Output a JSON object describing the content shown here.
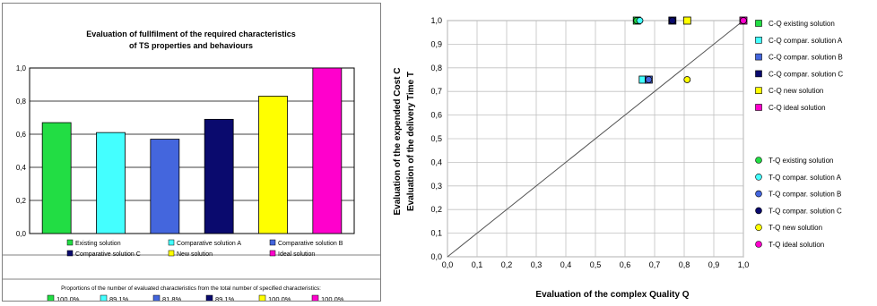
{
  "charts": {
    "left": {
      "title_line1": "Evaluation of fullfilment of the required characteristics",
      "title_line2": "of TS properties and behaviours",
      "legend": [
        {
          "label": "Existing solution",
          "color": "#22dd44"
        },
        {
          "label": "Comparative solution A",
          "color": "#44ffff"
        },
        {
          "label": "Comparative solution B",
          "color": "#4466dd"
        },
        {
          "label": "Comparative solution C",
          "color": "#0a0a6e"
        },
        {
          "label": "New solution",
          "color": "#ffff00"
        },
        {
          "label": "Ideal solution",
          "color": "#ff00cc"
        }
      ],
      "proportions_title": "Proportions of the number of evaluated characteristics from the total number of specified characteristics:",
      "proportions": [
        {
          "label": "100,0%",
          "color": "#22dd44"
        },
        {
          "label": "89,1%",
          "color": "#44ffff"
        },
        {
          "label": "81,8%",
          "color": "#4466dd"
        },
        {
          "label": "89,1%",
          "color": "#0a0a6e"
        },
        {
          "label": "100,0%",
          "color": "#ffff00"
        },
        {
          "label": "100,0%",
          "color": "#ff00cc"
        }
      ]
    },
    "right": {
      "xlabel": "Evaluation of the complex Quality Q",
      "ylabel_line1": "Evaluation of the expended Cost  C",
      "ylabel_line2": "Evaluation of the delivery Time  T",
      "legend": [
        {
          "label": "C-Q existing solution",
          "color": "#22dd44",
          "marker": "square"
        },
        {
          "label": "C-Q compar. solution A",
          "color": "#44ffff",
          "marker": "square"
        },
        {
          "label": "C-Q compar. solution B",
          "color": "#4466dd",
          "marker": "square"
        },
        {
          "label": "C-Q compar. solution C",
          "color": "#0a0a6e",
          "marker": "square"
        },
        {
          "label": "C-Q new solution",
          "color": "#ffff00",
          "marker": "square"
        },
        {
          "label": "C-Q ideal solution",
          "color": "#ff00cc",
          "marker": "square"
        },
        {
          "label": "T-Q existing solution",
          "color": "#22dd44",
          "marker": "circle"
        },
        {
          "label": "T-Q compar. solution A",
          "color": "#44ffff",
          "marker": "circle"
        },
        {
          "label": "T-Q compar. solution B",
          "color": "#4466dd",
          "marker": "circle"
        },
        {
          "label": "T-Q compar. solution C",
          "color": "#0a0a6e",
          "marker": "circle"
        },
        {
          "label": "T-Q new solution",
          "color": "#ffff00",
          "marker": "circle"
        },
        {
          "label": "T-Q ideal solution",
          "color": "#ff00cc",
          "marker": "circle"
        }
      ]
    }
  },
  "chart_data": [
    {
      "type": "bar",
      "title": "Evaluation of fullfilment of the required characteristics of TS properties and behaviours",
      "categories": [
        "Existing solution",
        "Comparative solution A",
        "Comparative solution B",
        "Comparative solution C",
        "New solution",
        "Ideal solution"
      ],
      "values": [
        0.67,
        0.61,
        0.57,
        0.69,
        0.83,
        1.0
      ],
      "colors": [
        "#22dd44",
        "#44ffff",
        "#4466dd",
        "#0a0a6e",
        "#ffff00",
        "#ff00cc"
      ],
      "ylim": [
        0,
        1.0
      ],
      "yticks": [
        "0,0",
        "0,2",
        "0,4",
        "0,6",
        "0,8",
        "1,0"
      ],
      "grid": true,
      "legend": "bottom"
    },
    {
      "type": "scatter",
      "xlabel": "Evaluation of the complex Quality Q",
      "ylabel": "Evaluation of the expended Cost C / Evaluation of the delivery Time T",
      "xlim": [
        0,
        1.0
      ],
      "ylim": [
        0,
        1.0
      ],
      "xticks": [
        "0,0",
        "0,1",
        "0,2",
        "0,3",
        "0,4",
        "0,5",
        "0,6",
        "0,7",
        "0,8",
        "0,9",
        "1,0"
      ],
      "yticks": [
        "0,0",
        "0,1",
        "0,2",
        "0,3",
        "0,4",
        "0,5",
        "0,6",
        "0,7",
        "0,8",
        "0,9",
        "1,0"
      ],
      "grid": true,
      "legend": "right",
      "diagonal": [
        [
          0,
          0
        ],
        [
          1.0,
          1.0
        ]
      ],
      "series": [
        {
          "name": "C-Q existing solution",
          "marker": "square",
          "color": "#22dd44",
          "points": [
            [
              0.64,
              1.0
            ]
          ]
        },
        {
          "name": "C-Q compar. solution A",
          "marker": "square",
          "color": "#44ffff",
          "points": [
            [
              0.66,
              0.75
            ]
          ]
        },
        {
          "name": "C-Q compar. solution B",
          "marker": "square",
          "color": "#4466dd",
          "points": [
            [
              0.68,
              0.75
            ]
          ]
        },
        {
          "name": "C-Q compar. solution C",
          "marker": "square",
          "color": "#0a0a6e",
          "points": [
            [
              0.76,
              1.0
            ]
          ]
        },
        {
          "name": "C-Q new solution",
          "marker": "square",
          "color": "#ffff00",
          "points": [
            [
              0.81,
              1.0
            ]
          ]
        },
        {
          "name": "C-Q ideal solution",
          "marker": "square",
          "color": "#ff00cc",
          "points": [
            [
              1.0,
              1.0
            ]
          ]
        },
        {
          "name": "T-Q existing solution",
          "marker": "circle",
          "color": "#22dd44",
          "points": [
            [
              0.64,
              1.0
            ]
          ]
        },
        {
          "name": "T-Q compar. solution A",
          "marker": "circle",
          "color": "#44ffff",
          "points": [
            [
              0.65,
              1.0
            ]
          ]
        },
        {
          "name": "T-Q compar. solution B",
          "marker": "circle",
          "color": "#4466dd",
          "points": [
            [
              0.68,
              0.75
            ]
          ]
        },
        {
          "name": "T-Q compar. solution C",
          "marker": "circle",
          "color": "#0a0a6e",
          "points": [
            [
              0.76,
              1.0
            ]
          ]
        },
        {
          "name": "T-Q new solution",
          "marker": "circle",
          "color": "#ffff00",
          "points": [
            [
              0.81,
              0.75
            ]
          ]
        },
        {
          "name": "T-Q ideal solution",
          "marker": "circle",
          "color": "#ff00cc",
          "points": [
            [
              1.0,
              1.0
            ]
          ]
        }
      ]
    }
  ]
}
